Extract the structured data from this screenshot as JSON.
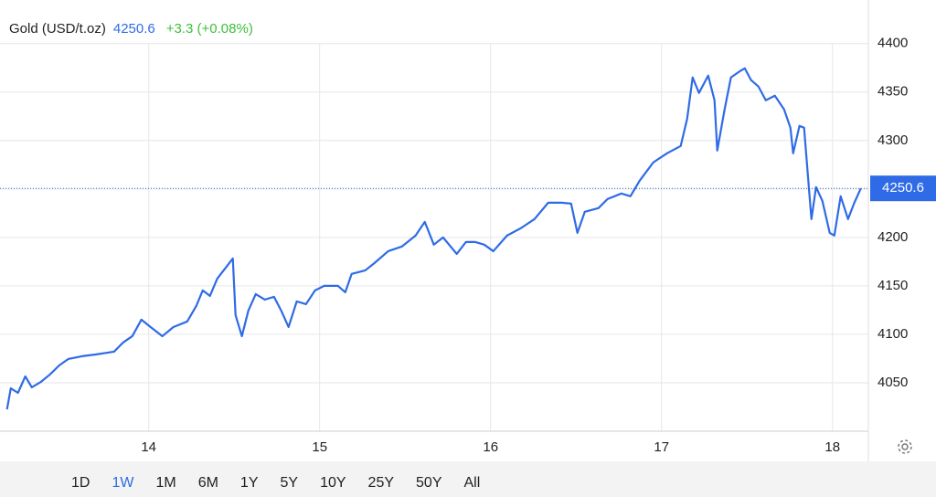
{
  "header": {
    "title": "Gold (USD/t.oz)",
    "change": "+3.3 (+0.08%)"
  },
  "chart_data": {
    "type": "line",
    "x": [
      13.171,
      13.193,
      13.235,
      13.278,
      13.316,
      13.369,
      13.422,
      13.476,
      13.529,
      13.61,
      13.69,
      13.797,
      13.85,
      13.904,
      13.957,
      14.011,
      14.08,
      14.144,
      14.225,
      14.278,
      14.316,
      14.358,
      14.401,
      14.455,
      14.492,
      14.508,
      14.545,
      14.583,
      14.626,
      14.679,
      14.733,
      14.775,
      14.818,
      14.866,
      14.92,
      14.973,
      15.027,
      15.107,
      15.15,
      15.187,
      15.267,
      15.321,
      15.401,
      15.481,
      15.561,
      15.615,
      15.668,
      15.722,
      15.802,
      15.856,
      15.909,
      15.963,
      16.016,
      16.096,
      16.176,
      16.257,
      16.337,
      16.417,
      16.471,
      16.508,
      16.551,
      16.631,
      16.684,
      16.765,
      16.818,
      16.872,
      16.952,
      17.032,
      17.112,
      17.15,
      17.182,
      17.219,
      17.273,
      17.31,
      17.326,
      17.369,
      17.406,
      17.46,
      17.487,
      17.524,
      17.567,
      17.61,
      17.663,
      17.717,
      17.754,
      17.77,
      17.807,
      17.834,
      17.866,
      17.877,
      17.904,
      17.941,
      17.984,
      18.011,
      18.048,
      18.091,
      18.128,
      18.166
    ],
    "series": [
      {
        "color": "#2f6be6",
        "values": [
          4022.6,
          4044.3,
          4039.6,
          4056.6,
          4045.3,
          4050.9,
          4058.5,
          4067.9,
          4074.5,
          4077.4,
          4079.2,
          4082.1,
          4091.5,
          4098.1,
          4115.1,
          4107.5,
          4098.1,
          4107.5,
          4113.2,
          4129.2,
          4145.3,
          4139.6,
          4157.5,
          4169.8,
          4178.3,
          4119.8,
          4098.1,
          4124.5,
          4141.5,
          4135.8,
          4138.7,
          4124.5,
          4107.5,
          4134.0,
          4131.1,
          4145.3,
          4150.0,
          4150.0,
          4143.4,
          4162.3,
          4166.0,
          4173.6,
          4185.8,
          4190.6,
          4201.9,
          4216.0,
          4192.5,
          4200.0,
          4183.0,
          4195.3,
          4195.3,
          4192.5,
          4185.8,
          4201.9,
          4209.4,
          4218.9,
          4235.8,
          4235.8,
          4234.9,
          4204.7,
          4226.4,
          4230.2,
          4239.6,
          4245.3,
          4242.5,
          4258.5,
          4277.4,
          4286.8,
          4294.3,
          4322.6,
          4365.1,
          4349.1,
          4367.0,
          4341.5,
          4289.6,
          4332.1,
          4365.1,
          4371.7,
          4374.5,
          4362.3,
          4355.7,
          4341.5,
          4346.2,
          4332.1,
          4313.2,
          4286.8,
          4315.1,
          4313.2,
          4242.5,
          4218.9,
          4251.9,
          4237.7,
          4204.7,
          4201.9,
          4242.5,
          4218.9,
          4235.8,
          4250.6
        ]
      }
    ],
    "xlim": [
      13.13,
      18.21
    ],
    "xticks": [
      14,
      15,
      16,
      17,
      18
    ],
    "ylim": [
      4000,
      4445
    ],
    "yticks": [
      4050,
      4100,
      4150,
      4200,
      4250,
      4300,
      4350,
      4400
    ],
    "grid": true,
    "last_price": 4250.6,
    "change_color": "#3cbf3c"
  },
  "ranges": [
    "1D",
    "1W",
    "1M",
    "6M",
    "1Y",
    "5Y",
    "10Y",
    "25Y",
    "50Y",
    "All"
  ],
  "active_range": 1
}
